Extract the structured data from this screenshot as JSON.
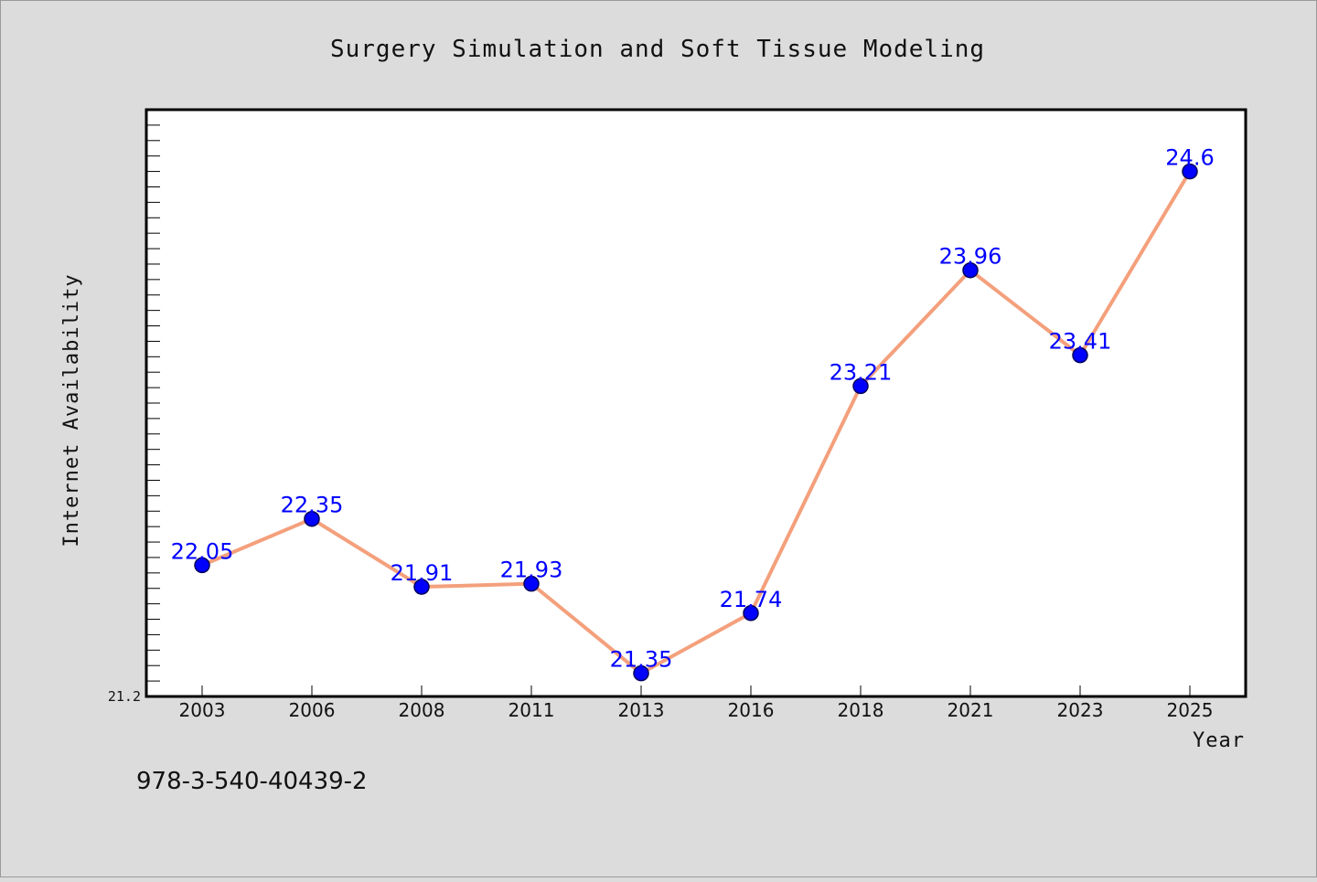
{
  "chart_data": {
    "type": "line",
    "title": "Surgery Simulation and Soft Tissue Modeling",
    "xlabel": "Year",
    "ylabel": "Internet Availability",
    "categories": [
      "2003",
      "2006",
      "2008",
      "2011",
      "2013",
      "2016",
      "2018",
      "2021",
      "2023",
      "2025"
    ],
    "series": [
      {
        "values": [
          22.05,
          22.35,
          21.91,
          21.93,
          21.35,
          21.74,
          23.21,
          23.96,
          23.41,
          24.6
        ],
        "labels": [
          "22.05",
          "22.35",
          "21.91",
          "21.93",
          "21.35",
          "21.74",
          "23.21",
          "23.96",
          "23.41",
          "24.6"
        ],
        "line_color": "#f4a07c",
        "marker_color": "#0000ff"
      }
    ],
    "ylim": [
      21.2,
      25.0
    ],
    "y_tick_labels": [
      "21.2"
    ],
    "grid": false,
    "legend": "none"
  },
  "footer": {
    "isbn": "978-3-540-40439-2"
  }
}
